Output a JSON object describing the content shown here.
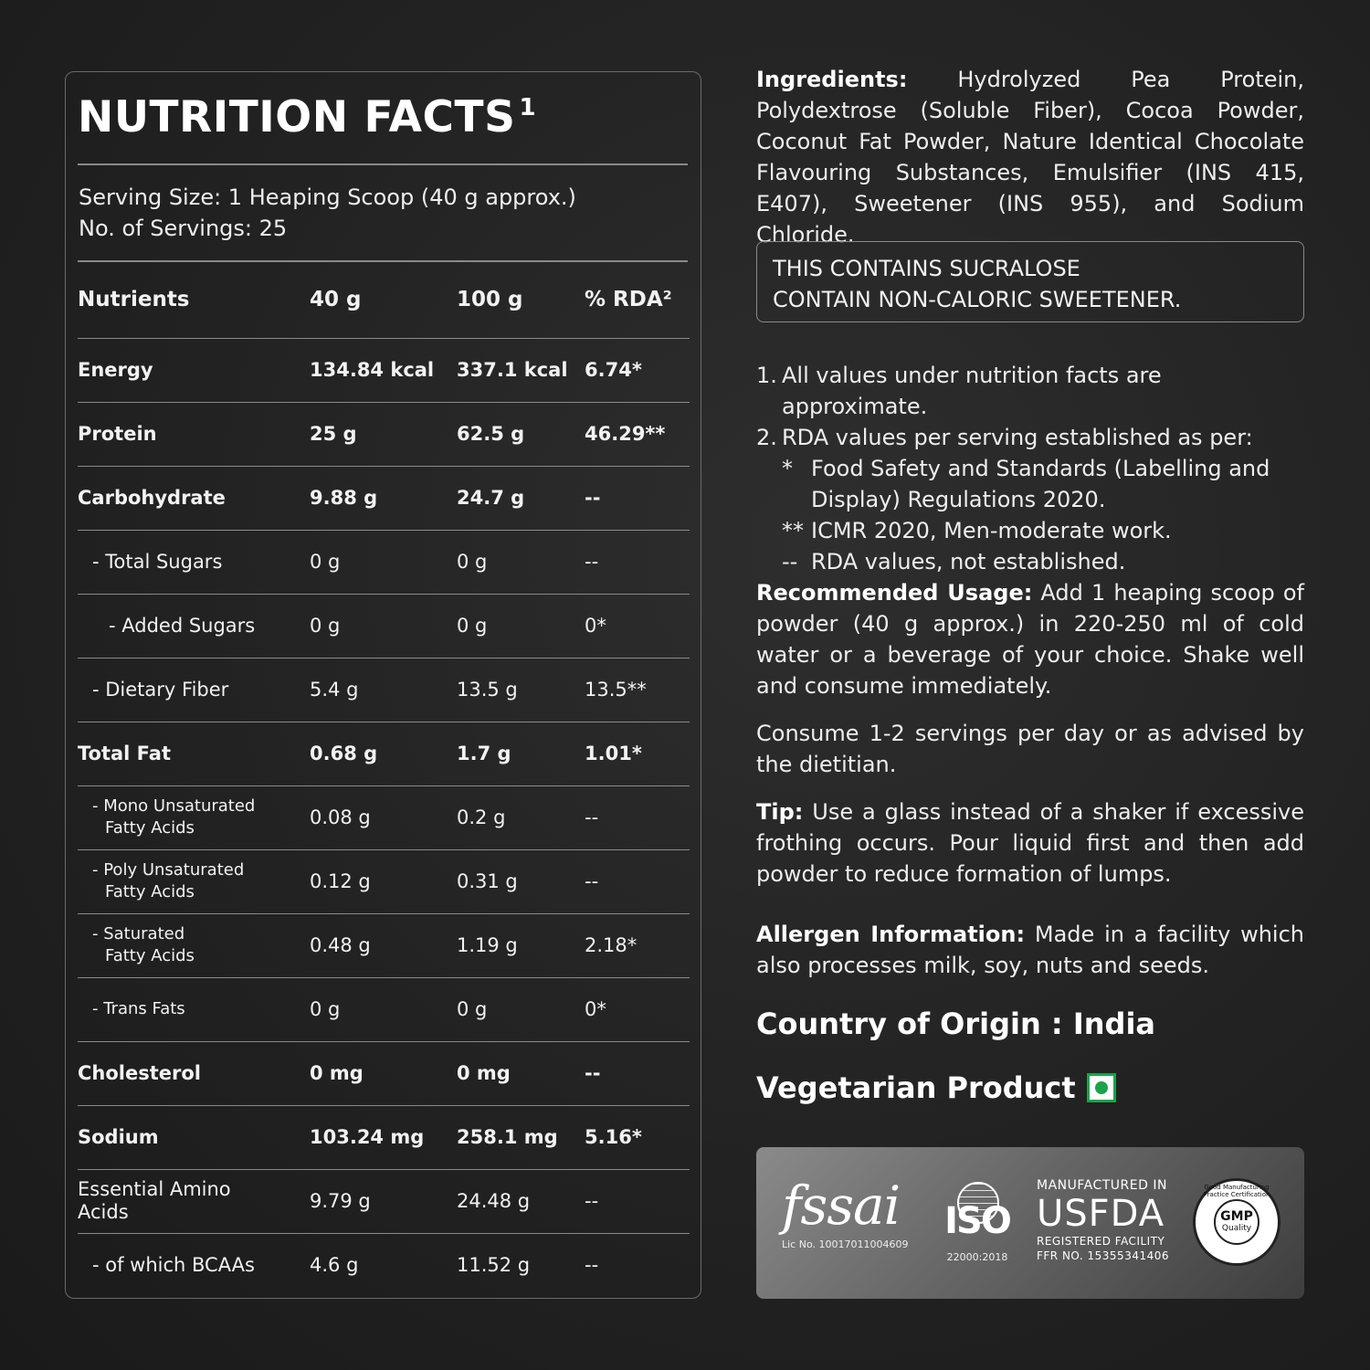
{
  "nutrition": {
    "title": "NUTRITION FACTS",
    "title_sup": "1",
    "serving_size": "Serving Size: 1 Heaping Scoop (40 g approx.)",
    "servings": "No. of Servings: 25",
    "headers": [
      "Nutrients",
      "40 g",
      "100 g",
      "% RDA²"
    ],
    "rows": [
      {
        "name": "Energy",
        "v40": "134.84 kcal",
        "v100": "337.1 kcal",
        "rda": "6.74*"
      },
      {
        "name": "Protein",
        "v40": "25 g",
        "v100": "62.5 g",
        "rda": "46.29**"
      },
      {
        "name": "Carbohydrate",
        "v40": "9.88 g",
        "v100": "24.7 g",
        "rda": "--"
      },
      {
        "name": "- Total Sugars",
        "v40": "0 g",
        "v100": "0 g",
        "rda": "--"
      },
      {
        "name": "- Added Sugars",
        "v40": "0 g",
        "v100": "0 g",
        "rda": "0*"
      },
      {
        "name": "- Dietary Fiber",
        "v40": "5.4 g",
        "v100": "13.5 g",
        "rda": "13.5**"
      },
      {
        "name": "Total Fat",
        "v40": "0.68 g",
        "v100": "1.7 g",
        "rda": "1.01*"
      },
      {
        "name": "- Mono Unsaturated",
        "name2": "Fatty Acids",
        "v40": "0.08 g",
        "v100": "0.2 g",
        "rda": "--"
      },
      {
        "name": "- Poly Unsaturated",
        "name2": "Fatty Acids",
        "v40": "0.12 g",
        "v100": "0.31 g",
        "rda": "--"
      },
      {
        "name": "- Saturated",
        "name2": "Fatty Acids",
        "v40": "0.48 g",
        "v100": "1.19 g",
        "rda": "2.18*"
      },
      {
        "name": "- Trans Fats",
        "v40": "0 g",
        "v100": "0 g",
        "rda": "0*"
      },
      {
        "name": "Cholesterol",
        "v40": "0 mg",
        "v100": "0 mg",
        "rda": "--"
      },
      {
        "name": "Sodium",
        "v40": "103.24 mg",
        "v100": "258.1 mg",
        "rda": "5.16*"
      },
      {
        "name": "Essential Amino",
        "name2": "Acids",
        "v40": "9.79 g",
        "v100": "24.48 g",
        "rda": "--"
      },
      {
        "name": "- of which BCAAs",
        "v40": "4.6 g",
        "v100": "11.52 g",
        "rda": "--"
      }
    ]
  },
  "ingredients": {
    "label": "Ingredients:",
    "text": "Hydrolyzed Pea Protein, Polydextrose (Soluble Fiber), Cocoa Powder, Coconut Fat Powder, Nature Identical Chocolate Flavouring Substances, Emulsifier (INS 415, E407), Sweetener (INS 955), and Sodium Chloride."
  },
  "warning": {
    "line1": "THIS CONTAINS SUCRALOSE",
    "line2": "CONTAIN NON-CALORIC SWEETENER."
  },
  "notes": {
    "n1_num": "1.",
    "n1": "All values under nutrition facts are approximate.",
    "n2_num": "2.",
    "n2": "RDA values per serving established as per:",
    "m1": "*",
    "m1_text": "Food Safety and Standards (Labelling and Display) Regulations 2020.",
    "m2": "**",
    "m2_text": "ICMR 2020, Men-moderate work.",
    "m3": "--",
    "m3_text": "RDA values, not established."
  },
  "usage": {
    "label": "Recommended Usage:",
    "text": "Add 1 heaping scoop of powder (40 g approx.) in 220-250 ml of cold water or a beverage of your choice. Shake well and consume immediately."
  },
  "consume": "Consume 1-2 servings per day or as advised by the dietitian.",
  "tip": {
    "label": "Tip:",
    "text": "Use a glass instead of a shaker if excessive frothing occurs. Pour liquid first and then add powder to reduce formation of lumps."
  },
  "allergen": {
    "label": "Allergen Information:",
    "text": "Made in a facility which also processes milk, soy, nuts and seeds."
  },
  "origin": "Country of Origin : India",
  "vegetarian": "Vegetarian Product",
  "certs": {
    "fssai_logo": "fssai",
    "fssai_lic": "Lic No. 10017011004609",
    "iso_logo": "ISO",
    "iso_num": "22000:2018",
    "usfda_t1": "MANUFACTURED IN",
    "usfda_t2": "USFDA",
    "usfda_t3": "REGISTERED FACILITY",
    "usfda_t4": "FFR NO. 15355341406",
    "gmp_g1": "GMP",
    "gmp_g2": "Quality",
    "gmp_ring": "Good Manufacturing Practice Certification"
  }
}
